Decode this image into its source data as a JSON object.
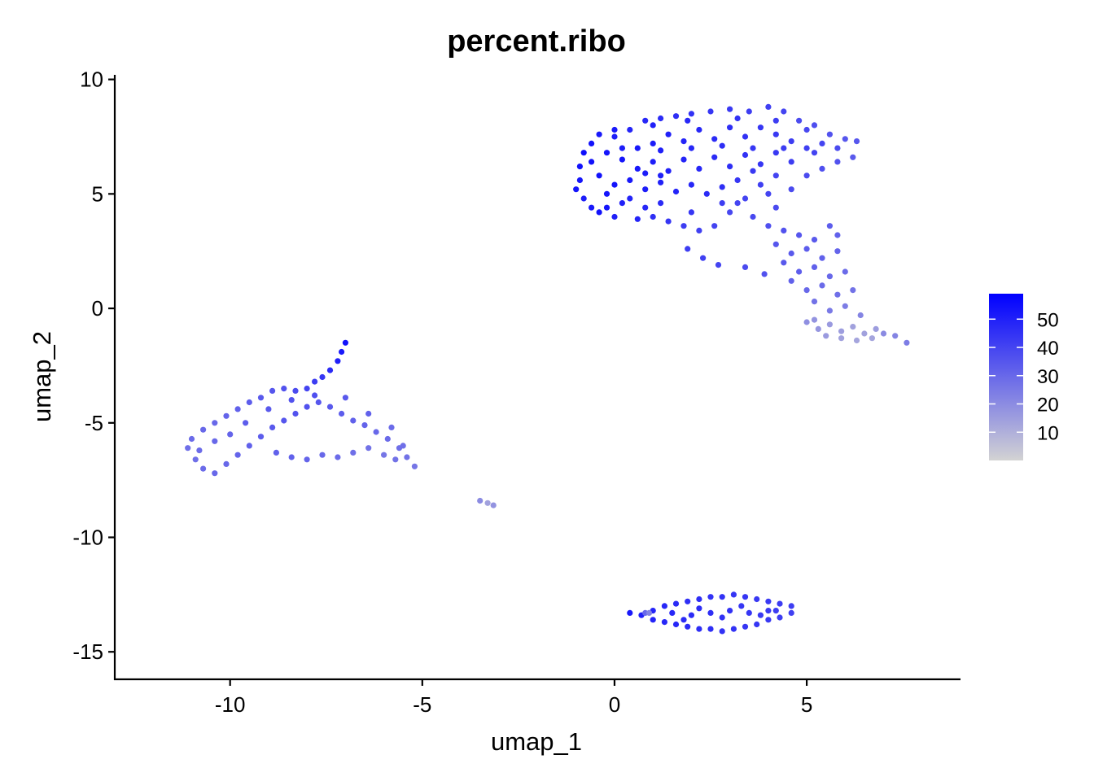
{
  "chart_data": {
    "type": "scatter",
    "title": "percent.ribo",
    "xlabel": "umap_1",
    "ylabel": "umap_2",
    "xlim": [
      -13,
      9
    ],
    "ylim": [
      -16.2,
      10.2
    ],
    "x_ticks": [
      {
        "value": -10,
        "label": "-10"
      },
      {
        "value": -5,
        "label": "-5"
      },
      {
        "value": 0,
        "label": "0"
      },
      {
        "value": 5,
        "label": "5"
      }
    ],
    "y_ticks": [
      {
        "value": 10,
        "label": "10"
      },
      {
        "value": 5,
        "label": "5"
      },
      {
        "value": 0,
        "label": "0"
      },
      {
        "value": -5,
        "label": "-5"
      },
      {
        "value": -10,
        "label": "-10"
      },
      {
        "value": -15,
        "label": "-15"
      }
    ],
    "grid": false,
    "legend": {
      "placement": "right",
      "type": "colorbar",
      "min": 0,
      "max": 59,
      "low_color": "#d3d3d3",
      "high_color": "#0000ff",
      "ticks": [
        {
          "value": 10,
          "label": "10"
        },
        {
          "value": 20,
          "label": "20"
        },
        {
          "value": 30,
          "label": "30"
        },
        {
          "value": 40,
          "label": "40"
        },
        {
          "value": 50,
          "label": "50"
        }
      ]
    },
    "point_color_scale": {
      "low": "#d3d3d3",
      "high": "#0000ff"
    },
    "points": [
      [
        -0.6,
        7.2,
        54
      ],
      [
        -0.4,
        7.6,
        52
      ],
      [
        0.0,
        7.5,
        50
      ],
      [
        0.4,
        7.8,
        49
      ],
      [
        0.8,
        8.2,
        48
      ],
      [
        1.2,
        8.3,
        47
      ],
      [
        1.6,
        8.4,
        46
      ],
      [
        2.0,
        8.5,
        45
      ],
      [
        2.5,
        8.6,
        44
      ],
      [
        3.0,
        8.7,
        43
      ],
      [
        3.5,
        8.6,
        42
      ],
      [
        4.0,
        8.8,
        41
      ],
      [
        4.4,
        8.6,
        40
      ],
      [
        4.8,
        8.2,
        38
      ],
      [
        5.2,
        8.0,
        37
      ],
      [
        5.6,
        7.6,
        36
      ],
      [
        6.0,
        7.4,
        35
      ],
      [
        6.3,
        7.3,
        35
      ],
      [
        6.2,
        6.6,
        34
      ],
      [
        5.8,
        6.4,
        36
      ],
      [
        5.4,
        6.1,
        37
      ],
      [
        5.0,
        5.8,
        38
      ],
      [
        -0.8,
        6.8,
        55
      ],
      [
        -0.9,
        6.2,
        54
      ],
      [
        -0.9,
        5.6,
        53
      ],
      [
        -1.0,
        5.2,
        53
      ],
      [
        -0.8,
        4.8,
        51
      ],
      [
        -0.6,
        4.4,
        52
      ],
      [
        -0.4,
        4.2,
        54
      ],
      [
        -0.2,
        4.4,
        53
      ],
      [
        0.2,
        4.6,
        50
      ],
      [
        0.4,
        4.8,
        49
      ],
      [
        0.8,
        4.4,
        48
      ],
      [
        1.0,
        4.0,
        46
      ],
      [
        1.4,
        3.8,
        44
      ],
      [
        1.8,
        3.6,
        42
      ],
      [
        2.2,
        3.4,
        41
      ],
      [
        2.6,
        3.6,
        40
      ],
      [
        3.0,
        4.2,
        39
      ],
      [
        3.4,
        4.8,
        40
      ],
      [
        3.8,
        5.4,
        41
      ],
      [
        4.2,
        5.8,
        40
      ],
      [
        0.6,
        7.0,
        52
      ],
      [
        1.0,
        7.2,
        51
      ],
      [
        1.4,
        7.6,
        50
      ],
      [
        1.8,
        7.3,
        49
      ],
      [
        2.2,
        7.8,
        48
      ],
      [
        2.6,
        7.4,
        47
      ],
      [
        3.0,
        7.9,
        46
      ],
      [
        3.4,
        7.5,
        45
      ],
      [
        3.8,
        7.9,
        44
      ],
      [
        4.2,
        7.6,
        43
      ],
      [
        4.6,
        7.3,
        42
      ],
      [
        5.0,
        7.0,
        41
      ],
      [
        5.4,
        7.2,
        40
      ],
      [
        0.2,
        6.5,
        53
      ],
      [
        0.6,
        6.1,
        52
      ],
      [
        1.0,
        6.4,
        51
      ],
      [
        1.4,
        6.0,
        50
      ],
      [
        1.8,
        6.5,
        49
      ],
      [
        2.2,
        6.1,
        48
      ],
      [
        2.6,
        6.6,
        47
      ],
      [
        3.0,
        6.2,
        46
      ],
      [
        3.4,
        6.7,
        45
      ],
      [
        3.8,
        6.3,
        44
      ],
      [
        4.2,
        6.8,
        43
      ],
      [
        4.6,
        6.4,
        42
      ],
      [
        -0.4,
        5.8,
        54
      ],
      [
        0.0,
        5.4,
        53
      ],
      [
        0.4,
        5.6,
        52
      ],
      [
        0.8,
        5.2,
        51
      ],
      [
        1.2,
        5.5,
        50
      ],
      [
        1.6,
        5.1,
        49
      ],
      [
        2.0,
        5.4,
        48
      ],
      [
        2.4,
        5.0,
        47
      ],
      [
        2.8,
        5.3,
        46
      ],
      [
        0.2,
        7.0,
        51
      ],
      [
        -0.2,
        6.8,
        53
      ],
      [
        1.2,
        6.9,
        50
      ],
      [
        2.0,
        7.0,
        48
      ],
      [
        2.8,
        7.1,
        46
      ],
      [
        3.6,
        7.0,
        44
      ],
      [
        4.4,
        7.0,
        42
      ],
      [
        5.2,
        6.8,
        40
      ],
      [
        5.8,
        7.0,
        38
      ],
      [
        0.0,
        4.0,
        50
      ],
      [
        0.6,
        3.9,
        49
      ],
      [
        1.2,
        4.6,
        47
      ],
      [
        2.0,
        4.2,
        44
      ],
      [
        2.8,
        4.6,
        42
      ],
      [
        3.6,
        4.0,
        39
      ],
      [
        4.0,
        3.6,
        37
      ],
      [
        4.4,
        3.4,
        36
      ],
      [
        4.8,
        3.2,
        35
      ],
      [
        5.2,
        3.0,
        34
      ],
      [
        5.6,
        3.6,
        33
      ],
      [
        5.8,
        3.2,
        32
      ],
      [
        4.2,
        2.8,
        35
      ],
      [
        4.6,
        2.4,
        34
      ],
      [
        5.0,
        2.6,
        33
      ],
      [
        5.4,
        2.2,
        32
      ],
      [
        5.8,
        2.5,
        31
      ],
      [
        4.4,
        2.0,
        34
      ],
      [
        4.8,
        1.6,
        33
      ],
      [
        5.2,
        1.8,
        32
      ],
      [
        5.6,
        1.4,
        30
      ],
      [
        6.0,
        1.6,
        29
      ],
      [
        4.6,
        1.2,
        32
      ],
      [
        5.0,
        0.8,
        30
      ],
      [
        5.4,
        1.0,
        29
      ],
      [
        5.8,
        0.6,
        28
      ],
      [
        6.2,
        0.8,
        27
      ],
      [
        5.2,
        0.3,
        27
      ],
      [
        5.6,
        -0.1,
        25
      ],
      [
        6.0,
        0.1,
        24
      ],
      [
        6.4,
        -0.3,
        22
      ],
      [
        5.0,
        -0.6,
        19
      ],
      [
        5.3,
        -0.9,
        17
      ],
      [
        5.6,
        -0.7,
        16
      ],
      [
        5.9,
        -1.0,
        15
      ],
      [
        6.2,
        -0.8,
        14
      ],
      [
        6.5,
        -1.1,
        14
      ],
      [
        6.8,
        -0.9,
        15
      ],
      [
        6.3,
        -1.4,
        13
      ],
      [
        5.9,
        -1.3,
        14
      ],
      [
        5.5,
        -1.2,
        16
      ],
      [
        5.2,
        -0.5,
        18
      ],
      [
        6.7,
        -1.3,
        13
      ],
      [
        7.0,
        -1.1,
        20
      ],
      [
        7.3,
        -1.2,
        22
      ],
      [
        7.6,
        -1.5,
        24
      ],
      [
        1.9,
        2.6,
        42
      ],
      [
        2.3,
        2.2,
        41
      ],
      [
        3.4,
        1.8,
        38
      ],
      [
        3.9,
        1.5,
        36
      ],
      [
        2.7,
        1.9,
        40
      ],
      [
        4.0,
        5.0,
        40
      ],
      [
        4.6,
        5.2,
        38
      ],
      [
        4.2,
        4.4,
        38
      ],
      [
        3.2,
        4.6,
        40
      ],
      [
        3.2,
        5.6,
        44
      ],
      [
        3.6,
        6.0,
        43
      ],
      [
        1.2,
        5.8,
        50
      ],
      [
        0.8,
        5.9,
        51
      ],
      [
        -0.2,
        5.0,
        53
      ],
      [
        -0.6,
        6.4,
        54
      ],
      [
        0.0,
        7.8,
        52
      ],
      [
        1.0,
        8.0,
        50
      ],
      [
        1.9,
        8.2,
        48
      ],
      [
        3.2,
        8.3,
        45
      ],
      [
        4.2,
        8.2,
        42
      ],
      [
        5.0,
        7.8,
        39
      ],
      [
        -7.0,
        -1.5,
        54
      ],
      [
        -7.1,
        -1.9,
        52
      ],
      [
        -7.2,
        -2.3,
        50
      ],
      [
        -7.4,
        -2.7,
        47
      ],
      [
        -7.6,
        -3.0,
        44
      ],
      [
        -7.8,
        -3.2,
        42
      ],
      [
        -8.0,
        -3.5,
        40
      ],
      [
        -8.3,
        -3.6,
        38
      ],
      [
        -8.6,
        -3.5,
        36
      ],
      [
        -8.9,
        -3.6,
        35
      ],
      [
        -9.2,
        -3.9,
        34
      ],
      [
        -9.5,
        -4.1,
        33
      ],
      [
        -9.8,
        -4.4,
        32
      ],
      [
        -10.1,
        -4.7,
        31
      ],
      [
        -10.4,
        -5.0,
        30
      ],
      [
        -10.7,
        -5.3,
        30
      ],
      [
        -11.0,
        -5.7,
        29
      ],
      [
        -11.1,
        -6.1,
        28
      ],
      [
        -10.9,
        -6.6,
        28
      ],
      [
        -10.7,
        -7.0,
        29
      ],
      [
        -10.4,
        -7.2,
        30
      ],
      [
        -10.1,
        -6.8,
        30
      ],
      [
        -9.8,
        -6.4,
        31
      ],
      [
        -9.5,
        -6.0,
        32
      ],
      [
        -9.2,
        -5.6,
        33
      ],
      [
        -8.9,
        -5.2,
        34
      ],
      [
        -8.6,
        -4.9,
        35
      ],
      [
        -8.3,
        -4.6,
        36
      ],
      [
        -8.0,
        -4.3,
        36
      ],
      [
        -7.7,
        -4.1,
        35
      ],
      [
        -7.4,
        -4.3,
        34
      ],
      [
        -7.1,
        -4.6,
        33
      ],
      [
        -6.8,
        -4.9,
        32
      ],
      [
        -6.5,
        -5.1,
        31
      ],
      [
        -6.2,
        -5.4,
        30
      ],
      [
        -5.9,
        -5.7,
        29
      ],
      [
        -5.6,
        -6.1,
        28
      ],
      [
        -5.4,
        -6.5,
        27
      ],
      [
        -5.2,
        -6.9,
        26
      ],
      [
        -6.0,
        -6.4,
        26
      ],
      [
        -6.4,
        -6.1,
        27
      ],
      [
        -6.8,
        -6.3,
        28
      ],
      [
        -7.2,
        -6.5,
        29
      ],
      [
        -7.6,
        -6.4,
        30
      ],
      [
        -8.0,
        -6.6,
        31
      ],
      [
        -8.4,
        -6.5,
        32
      ],
      [
        -8.8,
        -6.3,
        32
      ],
      [
        -9.6,
        -5.0,
        33
      ],
      [
        -10.0,
        -5.5,
        31
      ],
      [
        -10.4,
        -5.8,
        30
      ],
      [
        -10.8,
        -6.2,
        29
      ],
      [
        -9.0,
        -4.4,
        34
      ],
      [
        -8.4,
        -4.0,
        36
      ],
      [
        -7.8,
        -3.8,
        37
      ],
      [
        -7.0,
        -3.9,
        34
      ],
      [
        -6.4,
        -4.6,
        32
      ],
      [
        -5.8,
        -5.2,
        29
      ],
      [
        -5.5,
        -6.0,
        28
      ],
      [
        -5.7,
        -6.6,
        27
      ],
      [
        -3.5,
        -8.4,
        20
      ],
      [
        -3.3,
        -8.5,
        14
      ],
      [
        -3.15,
        -8.6,
        18
      ],
      [
        0.4,
        -13.3,
        52
      ],
      [
        0.7,
        -13.4,
        50
      ],
      [
        1.0,
        -13.2,
        49
      ],
      [
        1.3,
        -13.0,
        48
      ],
      [
        1.6,
        -12.9,
        47
      ],
      [
        1.9,
        -12.8,
        46
      ],
      [
        2.2,
        -12.7,
        46
      ],
      [
        2.5,
        -12.6,
        45
      ],
      [
        2.8,
        -12.6,
        45
      ],
      [
        3.1,
        -12.5,
        44
      ],
      [
        3.4,
        -12.6,
        44
      ],
      [
        3.7,
        -12.7,
        43
      ],
      [
        4.0,
        -12.8,
        43
      ],
      [
        4.3,
        -12.9,
        42
      ],
      [
        4.6,
        -13.0,
        42
      ],
      [
        4.6,
        -13.3,
        41
      ],
      [
        4.3,
        -13.5,
        42
      ],
      [
        4.0,
        -13.6,
        43
      ],
      [
        3.7,
        -13.8,
        44
      ],
      [
        3.4,
        -13.9,
        44
      ],
      [
        3.1,
        -14.0,
        45
      ],
      [
        2.8,
        -14.1,
        45
      ],
      [
        2.5,
        -14.0,
        46
      ],
      [
        2.2,
        -14.0,
        46
      ],
      [
        1.9,
        -13.9,
        47
      ],
      [
        1.6,
        -13.8,
        48
      ],
      [
        1.3,
        -13.7,
        48
      ],
      [
        1.0,
        -13.6,
        49
      ],
      [
        0.8,
        -13.3,
        30
      ],
      [
        0.9,
        -13.3,
        22
      ],
      [
        1.5,
        -13.3,
        48
      ],
      [
        2.0,
        -13.4,
        47
      ],
      [
        2.5,
        -13.3,
        46
      ],
      [
        3.0,
        -13.2,
        45
      ],
      [
        3.5,
        -13.3,
        44
      ],
      [
        4.0,
        -13.2,
        43
      ],
      [
        2.2,
        -13.1,
        46
      ],
      [
        2.8,
        -13.5,
        45
      ],
      [
        3.3,
        -13.0,
        44
      ],
      [
        3.8,
        -13.4,
        43
      ],
      [
        1.8,
        -13.6,
        47
      ],
      [
        4.2,
        -13.2,
        42
      ]
    ]
  }
}
